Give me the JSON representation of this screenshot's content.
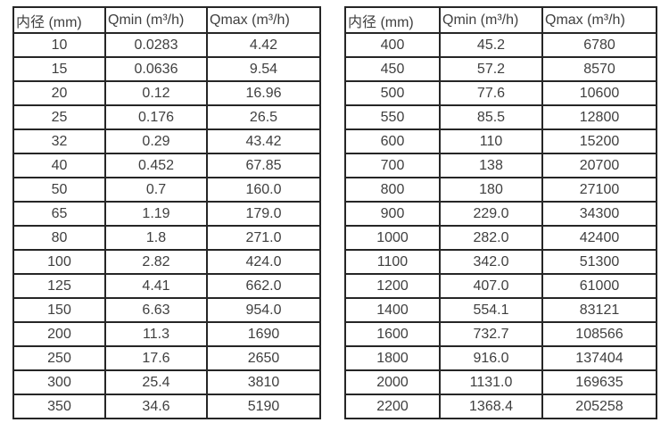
{
  "colors": {
    "background": "#ffffff",
    "border": "#262626",
    "text": "#3f3f3f"
  },
  "tables": [
    {
      "name": "small-diameter-flow-ranges",
      "headers": [
        "内径 (mm)",
        "Qmin (m³/h)",
        "Qmax (m³/h)"
      ],
      "rows": [
        [
          "10",
          "0.0283",
          "4.42"
        ],
        [
          "15",
          "0.0636",
          "9.54"
        ],
        [
          "20",
          "0.12",
          "16.96"
        ],
        [
          "25",
          "0.176",
          "26.5"
        ],
        [
          "32",
          "0.29",
          "43.42"
        ],
        [
          "40",
          "0.452",
          "67.85"
        ],
        [
          "50",
          "0.7",
          "160.0"
        ],
        [
          "65",
          "1.19",
          "179.0"
        ],
        [
          "80",
          "1.8",
          "271.0"
        ],
        [
          "100",
          "2.82",
          "424.0"
        ],
        [
          "125",
          "4.41",
          "662.0"
        ],
        [
          "150",
          "6.63",
          "954.0"
        ],
        [
          "200",
          "11.3",
          "1690"
        ],
        [
          "250",
          "17.6",
          "2650"
        ],
        [
          "300",
          "25.4",
          "3810"
        ],
        [
          "350",
          "34.6",
          "5190"
        ]
      ]
    },
    {
      "name": "large-diameter-flow-ranges",
      "headers": [
        "内径 (mm)",
        "Qmin (m³/h)",
        "Qmax (m³/h)"
      ],
      "rows": [
        [
          "400",
          "45.2",
          "6780"
        ],
        [
          "450",
          "57.2",
          "8570"
        ],
        [
          "500",
          "77.6",
          "10600"
        ],
        [
          "550",
          "85.5",
          "12800"
        ],
        [
          "600",
          "110",
          "15200"
        ],
        [
          "700",
          "138",
          "20700"
        ],
        [
          "800",
          "180",
          "27100"
        ],
        [
          "900",
          "229.0",
          "34300"
        ],
        [
          "1000",
          "282.0",
          "42400"
        ],
        [
          "1100",
          "342.0",
          "51300"
        ],
        [
          "1200",
          "407.0",
          "61000"
        ],
        [
          "1400",
          "554.1",
          "83121"
        ],
        [
          "1600",
          "732.7",
          "108566"
        ],
        [
          "1800",
          "916.0",
          "137404"
        ],
        [
          "2000",
          "1131.0",
          "169635"
        ],
        [
          "2200",
          "1368.4",
          "205258"
        ]
      ]
    }
  ]
}
